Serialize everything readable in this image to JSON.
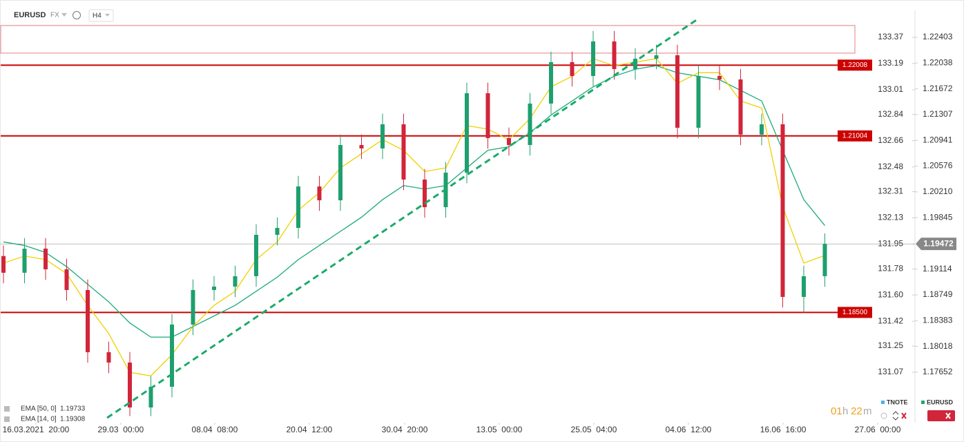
{
  "header": {
    "symbol": "EURUSD",
    "market": "FX",
    "interval": "H4"
  },
  "chart_data": {
    "type": "candlestick",
    "x": [
      0,
      1,
      2,
      3,
      4,
      5,
      6,
      7,
      8,
      9,
      10,
      11,
      12,
      13,
      14,
      15,
      16,
      17,
      18,
      19,
      20,
      21,
      22,
      23,
      24,
      25,
      26,
      27,
      28,
      29,
      30,
      31,
      32,
      33,
      34,
      35,
      36,
      37,
      38,
      39
    ],
    "open": [
      1.193,
      1.19063,
      1.19405,
      1.19112,
      1.18818,
      1.17936,
      1.17789,
      1.17152,
      1.17446,
      1.18328,
      1.18818,
      1.18867,
      1.19014,
      1.19601,
      1.19699,
      1.20287,
      1.20091,
      1.20875,
      1.20826,
      1.21169,
      1.20385,
      1.19993,
      1.20483,
      1.2161,
      1.20973,
      1.20875,
      1.21463,
      1.2205,
      1.21854,
      1.22344,
      1.21952,
      1.22099,
      1.22148,
      1.2112,
      1.21854,
      1.21805,
      1.21022,
      1.21169,
      1.1872,
      1.19014
    ],
    "high": [
      1.1945,
      1.19555,
      1.19555,
      1.19262,
      1.18968,
      1.18086,
      1.17939,
      1.17596,
      1.18478,
      1.18968,
      1.19017,
      1.19164,
      1.19751,
      1.19849,
      1.20437,
      1.20437,
      1.21025,
      1.21025,
      1.21319,
      1.21319,
      1.20535,
      1.20633,
      1.2176,
      1.2176,
      1.21123,
      1.21613,
      1.222,
      1.222,
      1.22494,
      1.22494,
      1.22249,
      1.22298,
      1.22298,
      1.22004,
      1.22004,
      1.21955,
      1.21319,
      1.21319,
      1.19164,
      1.19622
    ],
    "low": [
      1.18913,
      1.18913,
      1.18962,
      1.18668,
      1.17786,
      1.17639,
      1.1703,
      1.1703,
      1.17296,
      1.18178,
      1.18668,
      1.18717,
      1.18864,
      1.19451,
      1.19549,
      1.19941,
      1.19941,
      1.20676,
      1.20676,
      1.20235,
      1.19843,
      1.19843,
      1.20333,
      1.20823,
      1.20725,
      1.20725,
      1.21313,
      1.21704,
      1.21704,
      1.21802,
      1.21802,
      1.21949,
      1.2097,
      1.2097,
      1.21655,
      1.20872,
      1.20872,
      1.1857,
      1.185,
      1.18864
    ],
    "close": [
      1.19063,
      1.19405,
      1.19112,
      1.18818,
      1.17936,
      1.17789,
      1.17152,
      1.17446,
      1.18328,
      1.18818,
      1.18867,
      1.19014,
      1.19601,
      1.19699,
      1.20287,
      1.20091,
      1.20875,
      1.20826,
      1.21169,
      1.20385,
      1.19993,
      1.20483,
      1.2161,
      1.20973,
      1.20875,
      1.21463,
      1.2205,
      1.21854,
      1.22344,
      1.21952,
      1.22099,
      1.22148,
      1.2112,
      1.21854,
      1.21805,
      1.21022,
      1.21169,
      1.1872,
      1.19014,
      1.19472
    ],
    "up_color": "#1e9f6e",
    "down_color": "#d1253a",
    "overlays": [
      {
        "name": "EMA [50, 0]",
        "last": 1.19733,
        "color": "#1aaa7a",
        "values": [
          1.195,
          1.1945,
          1.1935,
          1.1915,
          1.189,
          1.1865,
          1.1835,
          1.1815,
          1.1815,
          1.183,
          1.1845,
          1.186,
          1.188,
          1.19,
          1.1925,
          1.1945,
          1.1965,
          1.1985,
          1.201,
          1.203,
          1.2025,
          1.203,
          1.2055,
          1.208,
          1.2085,
          1.2105,
          1.213,
          1.215,
          1.217,
          1.2185,
          1.2195,
          1.22,
          1.219,
          1.2185,
          1.218,
          1.2165,
          1.215,
          1.208,
          1.201,
          1.19733
        ]
      },
      {
        "name": "EMA [14, 0]",
        "last": 1.19308,
        "color": "#f0d000",
        "values": [
          1.192,
          1.193,
          1.1925,
          1.1905,
          1.186,
          1.182,
          1.1765,
          1.176,
          1.179,
          1.183,
          1.186,
          1.188,
          1.1925,
          1.195,
          1.1995,
          1.202,
          1.2055,
          1.2075,
          1.2095,
          1.208,
          1.205,
          1.2055,
          1.2115,
          1.211,
          1.2095,
          1.2125,
          1.217,
          1.2185,
          1.221,
          1.22,
          1.2205,
          1.221,
          1.2175,
          1.219,
          1.219,
          1.215,
          1.214,
          1.2,
          1.192,
          1.19308
        ]
      }
    ],
    "levels": [
      {
        "value": 1.22008,
        "label": "1.22008"
      },
      {
        "value": 1.21004,
        "label": "1.21004"
      },
      {
        "value": 1.185,
        "label": "1.18500"
      }
    ],
    "level_color": "#cc0000",
    "zone": [
      1.22178,
      1.2257
    ],
    "trendline": {
      "x": [
        4.92,
        32.95
      ],
      "y": [
        1.17005,
        1.22658
      ],
      "color": "#1aaa6a"
    },
    "last_price": 1.19472,
    "xlim": [
      -0.164,
      43.28
    ],
    "xticks": [
      {
        "value": 1.54,
        "label": "16.03.2021  20:00"
      },
      {
        "value": 5.57,
        "label": "29.03  00:00"
      },
      {
        "value": 10.03,
        "label": "08.04  08:00"
      },
      {
        "value": 14.52,
        "label": "20.04  12:00"
      },
      {
        "value": 19.05,
        "label": "30.04  20:00"
      },
      {
        "value": 23.54,
        "label": "13.05  00:00"
      },
      {
        "value": 28.03,
        "label": "25.05  04:00"
      },
      {
        "value": 32.52,
        "label": "04.06  12:00"
      },
      {
        "value": 37.02,
        "label": "16.06  16:00"
      },
      {
        "value": 41.51,
        "label": "27.06  00:00"
      }
    ],
    "ylim": [
      1.17005,
      1.22785
    ],
    "yticks": [
      1.22403,
      1.22038,
      1.21672,
      1.21307,
      1.20941,
      1.20576,
      {
        "value": 1.2021,
        "label": "1.20210"
      },
      1.19845,
      1.19114,
      1.18749,
      1.18383,
      1.18018,
      1.17652
    ],
    "y2lim": [
      130.757,
      133.555
    ],
    "y2ticks": [
      133.37,
      133.19,
      133.01,
      132.84,
      132.66,
      132.48,
      132.31,
      132.13,
      131.95,
      131.78,
      {
        "value": 131.6,
        "label": "131.60"
      },
      131.42,
      131.25,
      131.07
    ],
    "compare": [
      {
        "name": "TNOTE",
        "color": "#4ab0f0"
      },
      {
        "name": "EURUSD",
        "color": "#1aaa6a"
      }
    ],
    "timer_parts": [
      "01",
      "h",
      "22",
      "m"
    ]
  }
}
